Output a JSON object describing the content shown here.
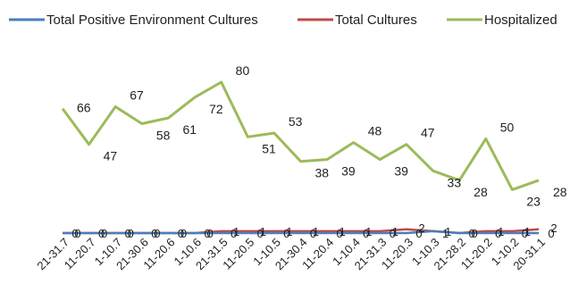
{
  "chart_data": {
    "type": "line",
    "title": "",
    "xlabel": "",
    "ylabel": "",
    "legend_position": "top",
    "grid": false,
    "ylim": [
      0,
      90
    ],
    "categories": [
      "21-31.7",
      "11-20.7",
      "1-10.7",
      "21-30.6",
      "11-20.6",
      "1-10.6",
      "21-31.5",
      "11-20.5",
      "1-10.5",
      "21-30.4",
      "11-20.4",
      "1-10.4",
      "21-31.3",
      "11-20.3",
      "1-10.3",
      "21-28.2",
      "11-20.2",
      "1-10.2",
      "20-31.1"
    ],
    "series": [
      {
        "name": "Total Positive Environment Cultures",
        "color": "#4a7ebb",
        "values": [
          0,
          0,
          0,
          0,
          0,
          0,
          0,
          0,
          0,
          0,
          0,
          0,
          0,
          0,
          1,
          0,
          0,
          0,
          0
        ],
        "labels": [
          "0",
          "0",
          "0",
          "0",
          "0",
          "0",
          "0",
          "0",
          "0",
          "0",
          "0",
          "0",
          "0",
          "0",
          "1",
          "0",
          "0",
          "0",
          "0"
        ]
      },
      {
        "name": "Total Cultures",
        "color": "#be4b48",
        "values": [
          0,
          0,
          0,
          0,
          0,
          0,
          1,
          1,
          1,
          1,
          1,
          1,
          1,
          2,
          1,
          0,
          1,
          1,
          2
        ],
        "labels": [
          "0",
          "0",
          "0",
          "0",
          "0",
          "0",
          "1",
          "1",
          "1",
          "1",
          "1",
          "1",
          "1",
          "2",
          "1",
          "0",
          "1",
          "1",
          "2"
        ]
      },
      {
        "name": "Hospitalized",
        "color": "#9bbb59",
        "values": [
          66,
          47,
          67,
          58,
          61,
          72,
          80,
          51,
          53,
          38,
          39,
          48,
          39,
          47,
          33,
          28,
          50,
          23,
          28
        ],
        "labels": [
          "66",
          "47",
          "67",
          "58",
          "61",
          "72",
          "80",
          "51",
          "53",
          "38",
          "39",
          "48",
          "39",
          "47",
          "33",
          "28",
          "50",
          "23",
          "28"
        ]
      }
    ]
  }
}
